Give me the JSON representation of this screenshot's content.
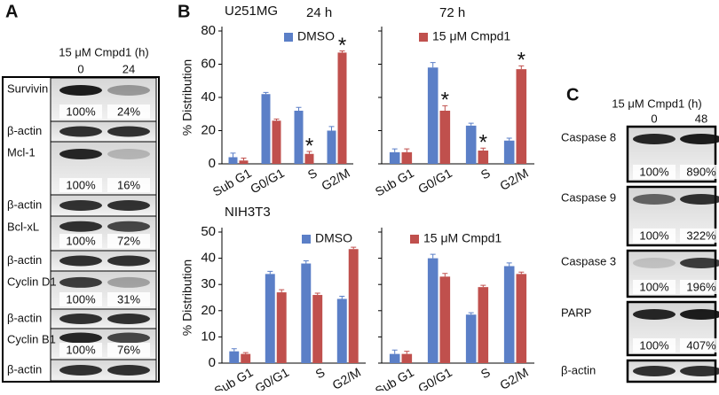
{
  "panel_a": {
    "label": "A",
    "header": "15 μM Cmpd1 (h)",
    "lanes": [
      "0",
      "24"
    ],
    "rows": [
      {
        "name": "Survivin",
        "quant": [
          "100%",
          "24%"
        ]
      },
      {
        "name": "β-actin"
      },
      {
        "name": "Mcl-1",
        "quant": [
          "100%",
          "16%"
        ]
      },
      {
        "name": "β-actin"
      },
      {
        "name": "Bcl-xL",
        "quant": [
          "100%",
          "72%"
        ]
      },
      {
        "name": "β-actin"
      },
      {
        "name": "Cyclin D1",
        "quant": [
          "100%",
          "31%"
        ]
      },
      {
        "name": "β-actin"
      },
      {
        "name": "Cyclin B1",
        "quant": [
          "100%",
          "76%"
        ]
      },
      {
        "name": "β-actin"
      }
    ]
  },
  "panel_b": {
    "label": "B"
  },
  "chart_data": [
    {
      "type": "bar",
      "title": "U251MG",
      "subtitle": "24 h",
      "ylabel": "% Distribution",
      "categories": [
        "Sub G1",
        "G0/G1",
        "S",
        "G2/M"
      ],
      "series": [
        {
          "name": "DMSO",
          "color": "#5b7fc7",
          "values": [
            4,
            42,
            32,
            20
          ],
          "errors": [
            2.5,
            1,
            2,
            2.5
          ]
        },
        {
          "color": "#c0504d",
          "values": [
            2,
            26,
            6,
            67
          ],
          "errors": [
            1.5,
            1,
            1.5,
            1
          ],
          "significance": [
            null,
            null,
            "*",
            "*"
          ]
        }
      ],
      "ylim": [
        0,
        80
      ],
      "yticks": [
        0,
        20,
        40,
        60,
        80
      ]
    },
    {
      "type": "bar",
      "subtitle": "72 h",
      "categories": [
        "Sub G1",
        "G0/G1",
        "S",
        "G2/M"
      ],
      "series": [
        {
          "color": "#5b7fc7",
          "values": [
            7,
            58,
            23,
            14
          ],
          "errors": [
            2,
            3,
            1.5,
            1.5
          ]
        },
        {
          "name": "15 μM Cmpd1",
          "color": "#c0504d",
          "values": [
            7,
            32,
            8,
            57
          ],
          "errors": [
            2,
            3,
            1.5,
            2
          ],
          "significance": [
            null,
            "*",
            "*",
            "*"
          ]
        }
      ],
      "ylim": [
        0,
        80
      ],
      "yticks": [
        0,
        20,
        40,
        60,
        80
      ],
      "tick_labels": false
    },
    {
      "type": "bar",
      "title": "NIH3T3",
      "ylabel": "% Distribution",
      "categories": [
        "Sub G1",
        "G0/G1",
        "S",
        "G2/M"
      ],
      "series": [
        {
          "name": "DMSO",
          "color": "#5b7fc7",
          "values": [
            4.5,
            34,
            38,
            24.5
          ],
          "errors": [
            1,
            1,
            1,
            1
          ]
        },
        {
          "color": "#c0504d",
          "values": [
            3.5,
            27,
            26,
            43.5
          ],
          "errors": [
            0.5,
            1,
            0.7,
            0.7
          ]
        }
      ],
      "ylim": [
        0,
        50
      ],
      "yticks": [
        0,
        10,
        20,
        30,
        40,
        50
      ]
    },
    {
      "type": "bar",
      "categories": [
        "Sub G1",
        "G0/G1",
        "S",
        "G2/M"
      ],
      "series": [
        {
          "color": "#5b7fc7",
          "values": [
            3.5,
            40,
            18.5,
            37
          ],
          "errors": [
            1.5,
            1.5,
            0.7,
            1.2
          ]
        },
        {
          "name": "15 μM Cmpd1",
          "color": "#c0504d",
          "values": [
            3.5,
            33,
            29,
            34
          ],
          "errors": [
            1,
            1.2,
            0.7,
            0.7
          ]
        }
      ],
      "ylim": [
        0,
        50
      ],
      "yticks": [
        0,
        10,
        20,
        30,
        40,
        50
      ],
      "tick_labels": false
    }
  ],
  "panel_c": {
    "label": "C",
    "header": "15 μM Cmpd1 (h)",
    "lanes": [
      "0",
      "48"
    ],
    "rows": [
      {
        "name": "Caspase 8",
        "quant": [
          "100%",
          "890%"
        ]
      },
      {
        "name": "Caspase 9",
        "quant": [
          "100%",
          "322%"
        ]
      },
      {
        "name": "Caspase 3",
        "quant": [
          "100%",
          "196%"
        ]
      },
      {
        "name": "PARP",
        "quant": [
          "100%",
          "407%"
        ]
      },
      {
        "name": "β-actin"
      }
    ]
  }
}
